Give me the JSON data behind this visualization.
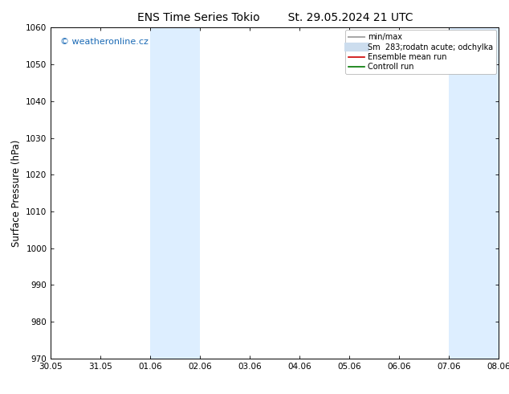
{
  "title": "ENS Time Series Tokio        St. 29.05.2024 21 UTC",
  "ylabel": "Surface Pressure (hPa)",
  "ylim": [
    970,
    1060
  ],
  "yticks": [
    970,
    980,
    990,
    1000,
    1010,
    1020,
    1030,
    1040,
    1050,
    1060
  ],
  "xtick_labels": [
    "30.05",
    "31.05",
    "01.06",
    "02.06",
    "03.06",
    "04.06",
    "05.06",
    "06.06",
    "07.06",
    "08.06"
  ],
  "xtick_positions": [
    0,
    1,
    2,
    3,
    4,
    5,
    6,
    7,
    8,
    9
  ],
  "shaded_bands": [
    {
      "x_start": 2,
      "x_end": 2.5
    },
    {
      "x_start": 2.5,
      "x_end": 3
    },
    {
      "x_start": 8,
      "x_end": 8.5
    },
    {
      "x_start": 8.5,
      "x_end": 9
    }
  ],
  "shade_color": "#ddeeff",
  "watermark_text": "© weatheronline.cz",
  "watermark_color": "#1a6ab5",
  "legend_entries": [
    {
      "label": "min/max",
      "color": "#aaaaaa",
      "lw": 1.5,
      "style": "-"
    },
    {
      "label": "Sm  283;rodatn acute; odchylka",
      "color": "#ccddee",
      "lw": 8,
      "style": "-"
    },
    {
      "label": "Ensemble mean run",
      "color": "#cc0000",
      "lw": 1.2,
      "style": "-"
    },
    {
      "label": "Controll run",
      "color": "#007700",
      "lw": 1.2,
      "style": "-"
    }
  ],
  "bg_color": "#ffffff",
  "title_fontsize": 10,
  "tick_fontsize": 7.5,
  "ylabel_fontsize": 8.5
}
